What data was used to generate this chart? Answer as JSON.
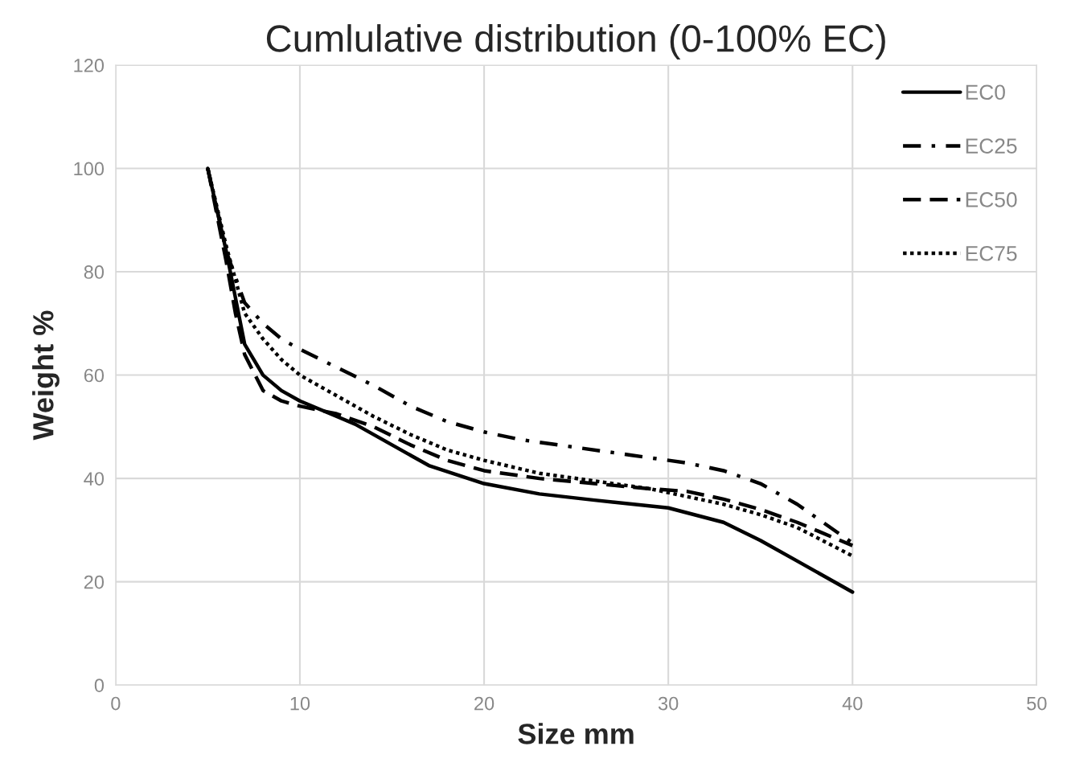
{
  "chart_data": {
    "type": "line",
    "title": "Cumlulative distribution (0-100% EC)",
    "xlabel": "Size mm",
    "ylabel": "Weight %",
    "xlim": [
      0,
      50
    ],
    "xticks": [
      0,
      10,
      20,
      30,
      40,
      50
    ],
    "ylim": [
      0,
      120
    ],
    "yticks": [
      0,
      20,
      40,
      60,
      80,
      100,
      120
    ],
    "grid": true,
    "legend": "top right",
    "marker": "none",
    "series": [
      {
        "name": "EC0",
        "color": "#000000",
        "line_style": "solid",
        "x": [
          5,
          6,
          6.5,
          7,
          8,
          9,
          10,
          12,
          13,
          15,
          17,
          20,
          23,
          26,
          30,
          33,
          35,
          37,
          40
        ],
        "values": [
          100,
          84,
          75,
          66,
          60,
          57,
          55,
          52,
          50.5,
          46.5,
          42.5,
          39,
          37,
          35.8,
          34.3,
          31.5,
          28,
          24,
          18
        ]
      },
      {
        "name": "EC25",
        "color": "#000000",
        "line_style": "dashdot",
        "x": [
          5,
          6,
          7,
          8,
          9,
          10,
          12,
          14,
          16,
          18,
          20,
          22,
          25,
          28,
          31,
          33,
          35,
          37,
          40
        ],
        "values": [
          100,
          84,
          74,
          70,
          67,
          65,
          61.5,
          58,
          54,
          51,
          49,
          47.5,
          46,
          44.5,
          43,
          41.5,
          39,
          35,
          27.5
        ]
      },
      {
        "name": "EC50",
        "color": "#000000",
        "line_style": "dashed",
        "x": [
          5,
          6,
          6.5,
          7,
          8,
          9,
          10,
          12,
          14,
          16,
          18,
          20,
          23,
          26,
          29,
          31,
          33,
          35,
          37,
          40
        ],
        "values": [
          100,
          82,
          72,
          64,
          57,
          55,
          54,
          52.5,
          50,
          46.5,
          43.5,
          41.5,
          40,
          39,
          38,
          37.5,
          36,
          34,
          31.5,
          27
        ]
      },
      {
        "name": "EC75",
        "color": "#000000",
        "line_style": "dotted",
        "x": [
          5,
          6,
          7,
          8,
          9,
          10,
          12,
          14,
          16,
          18,
          20,
          23,
          26,
          29,
          31,
          33,
          35,
          37,
          40
        ],
        "values": [
          100,
          85,
          72,
          67,
          63,
          60,
          56,
          52,
          48.5,
          45.5,
          43.5,
          41,
          39.5,
          38,
          36.5,
          35,
          33,
          30.5,
          25
        ]
      }
    ]
  }
}
